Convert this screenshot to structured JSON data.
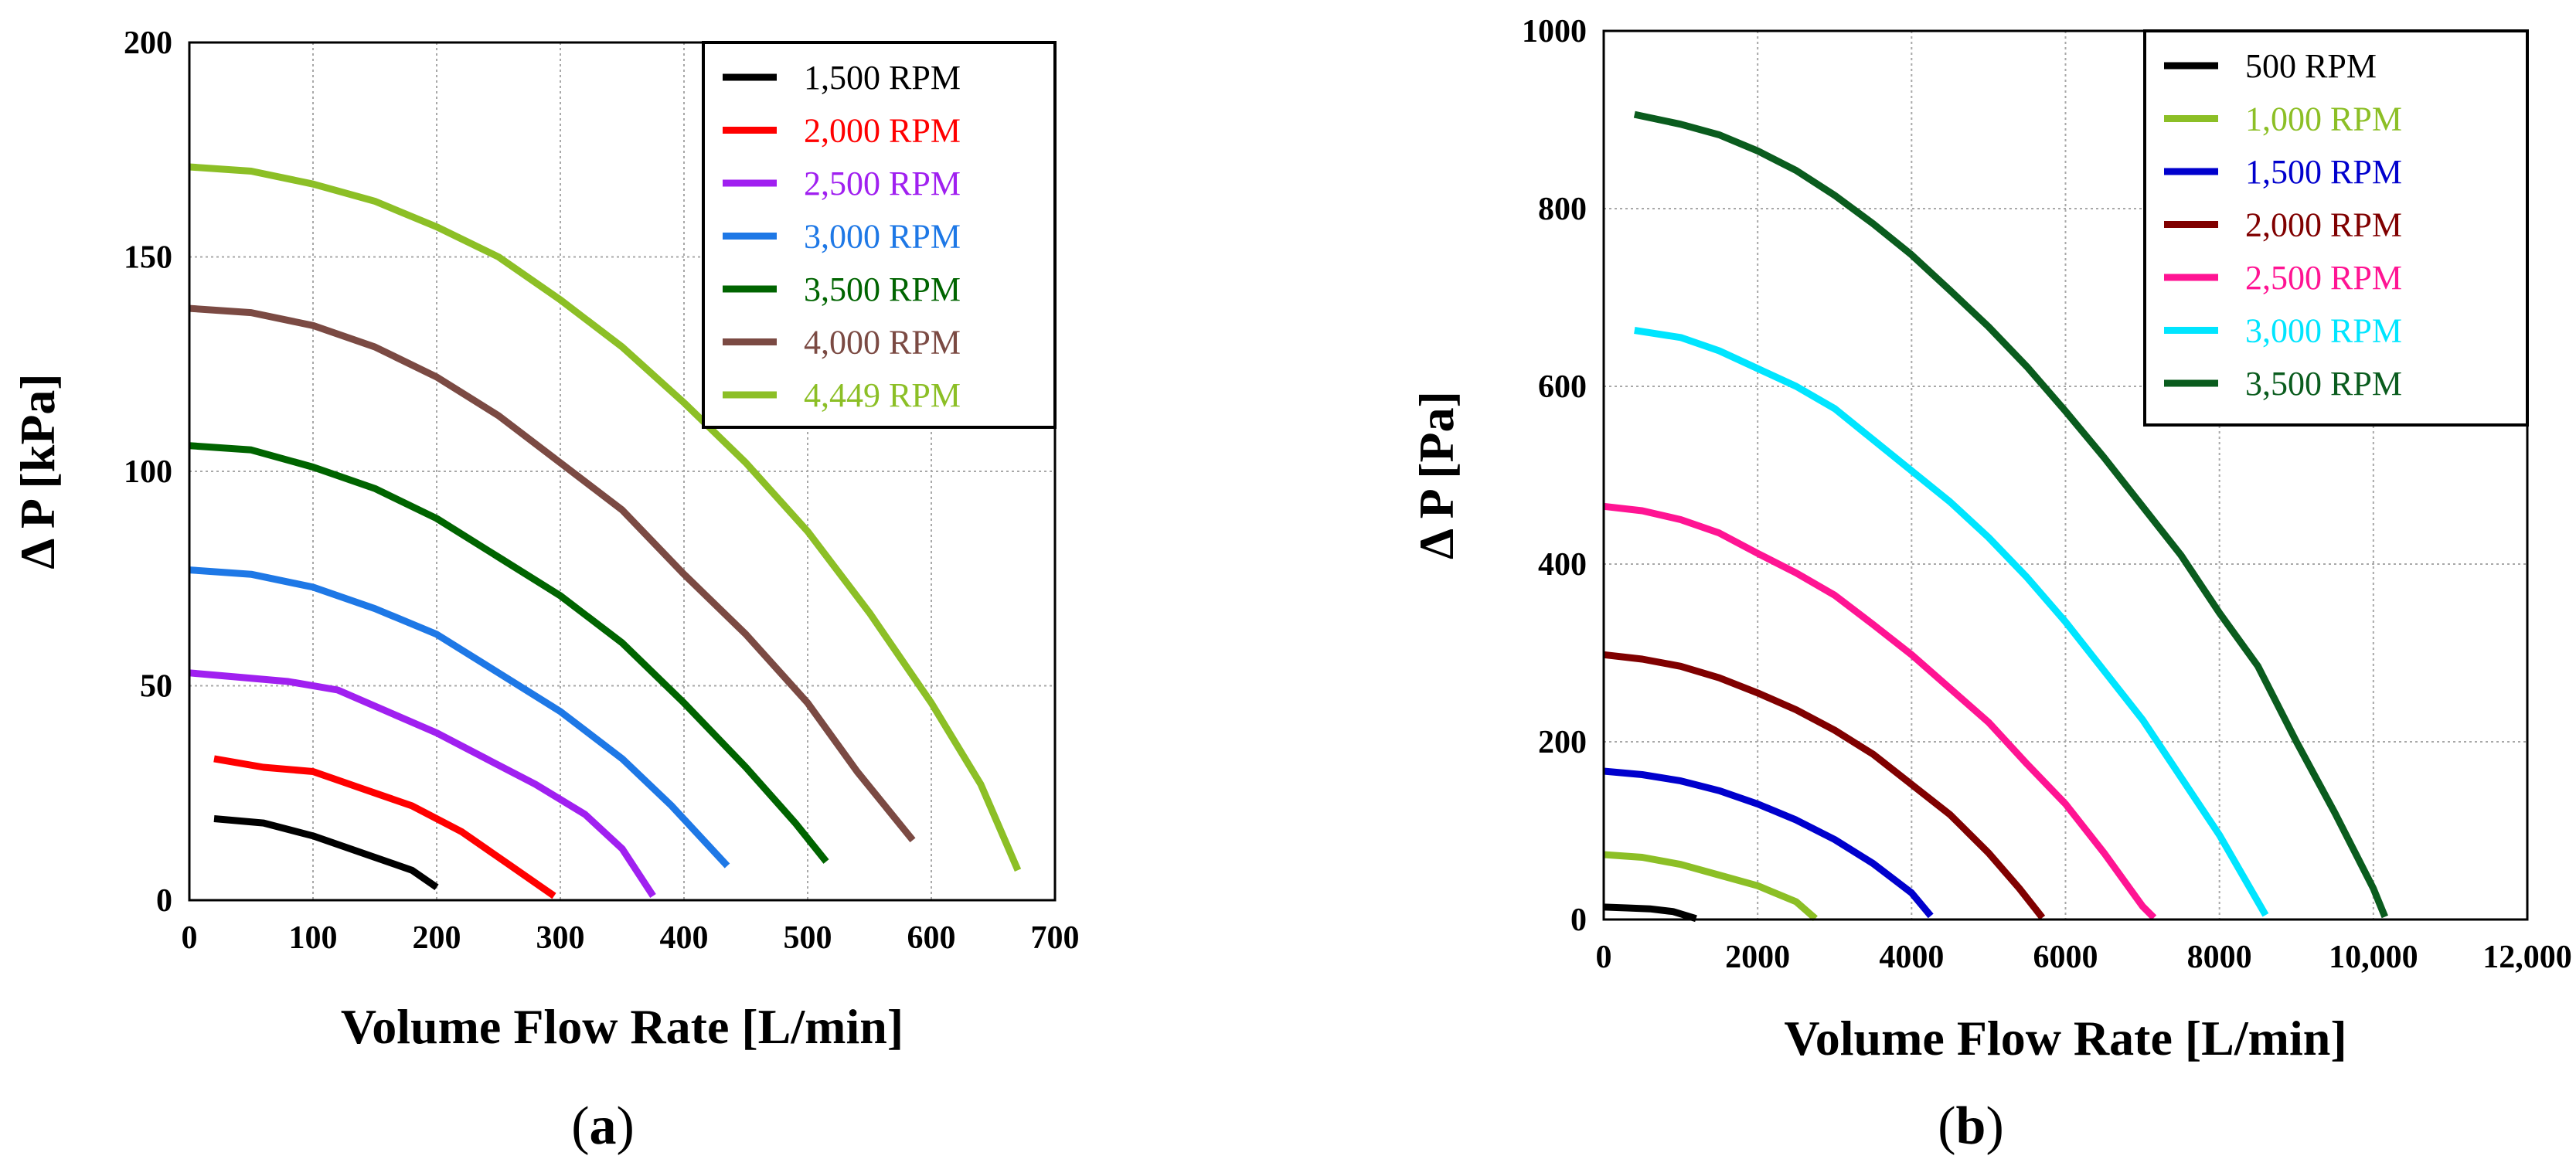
{
  "chart_data": [
    {
      "type": "line",
      "panel_label": "a",
      "xlabel": "Volume Flow Rate [L/min]",
      "ylabel": "Δ P [kPa]",
      "xlim": [
        0,
        700
      ],
      "ylim": [
        0,
        200
      ],
      "xticks": [
        0,
        100,
        200,
        300,
        400,
        500,
        600,
        700
      ],
      "yticks": [
        0,
        50,
        100,
        150,
        200
      ],
      "xtick_labels": [
        "0",
        "100",
        "200",
        "300",
        "400",
        "500",
        "600",
        "700"
      ],
      "ytick_labels": [
        "0",
        "50",
        "100",
        "150",
        "200"
      ],
      "grid": true,
      "legend_position": "top-right",
      "series": [
        {
          "name": "1,500 RPM",
          "color": "#000000",
          "x": [
            20,
            60,
            100,
            140,
            180,
            200
          ],
          "y": [
            19,
            18,
            15,
            11,
            7,
            3
          ]
        },
        {
          "name": "2,000 RPM",
          "color": "#ff0000",
          "x": [
            20,
            60,
            100,
            140,
            180,
            220,
            260,
            295
          ],
          "y": [
            33,
            31,
            30,
            26,
            22,
            16,
            8,
            1
          ]
        },
        {
          "name": "2,500 RPM",
          "color": "#a020f0",
          "x": [
            0,
            40,
            80,
            120,
            160,
            200,
            240,
            280,
            320,
            350,
            375
          ],
          "y": [
            53,
            52,
            51,
            49,
            44,
            39,
            33,
            27,
            20,
            12,
            1
          ]
        },
        {
          "name": "3,000 RPM",
          "color": "#1e78e6",
          "x": [
            0,
            50,
            100,
            150,
            200,
            250,
            300,
            350,
            390,
            435
          ],
          "y": [
            77,
            76,
            73,
            68,
            62,
            53,
            44,
            33,
            22,
            8
          ]
        },
        {
          "name": "3,500 RPM",
          "color": "#006400",
          "x": [
            0,
            50,
            100,
            150,
            200,
            250,
            300,
            350,
            400,
            450,
            490,
            515
          ],
          "y": [
            106,
            105,
            101,
            96,
            89,
            80,
            71,
            60,
            46,
            31,
            18,
            9
          ]
        },
        {
          "name": "4,000 RPM",
          "color": "#7b4a43",
          "x": [
            0,
            50,
            100,
            150,
            200,
            250,
            300,
            350,
            400,
            450,
            500,
            540,
            585
          ],
          "y": [
            138,
            137,
            134,
            129,
            122,
            113,
            102,
            91,
            76,
            62,
            46,
            30,
            14
          ]
        },
        {
          "name": "4,449 RPM",
          "color": "#8cbf26",
          "x": [
            0,
            50,
            100,
            150,
            200,
            250,
            300,
            350,
            400,
            450,
            500,
            550,
            600,
            640,
            670
          ],
          "y": [
            171,
            170,
            167,
            163,
            157,
            150,
            140,
            129,
            116,
            102,
            86,
            67,
            46,
            27,
            7
          ]
        }
      ]
    },
    {
      "type": "line",
      "panel_label": "b",
      "xlabel": "Volume Flow Rate [L/min]",
      "ylabel": "Δ P [Pa]",
      "xlim": [
        0,
        12000
      ],
      "ylim": [
        0,
        1000
      ],
      "xticks": [
        0,
        2000,
        4000,
        6000,
        8000,
        10000,
        12000
      ],
      "yticks": [
        0,
        200,
        400,
        600,
        800,
        1000
      ],
      "xtick_labels": [
        "0",
        "2000",
        "4000",
        "6000",
        "8000",
        "10,000",
        "12,000"
      ],
      "ytick_labels": [
        "0",
        "200",
        "400",
        "600",
        "800",
        "1000"
      ],
      "grid": true,
      "legend_position": "top-right",
      "series": [
        {
          "name": "500 RPM",
          "color": "#000000",
          "x": [
            0,
            300,
            600,
            900,
            1200
          ],
          "y": [
            14,
            13,
            12,
            9,
            1
          ]
        },
        {
          "name": "1,000 RPM",
          "color": "#8cbf26",
          "x": [
            0,
            500,
            1000,
            1500,
            2000,
            2500,
            2750
          ],
          "y": [
            73,
            70,
            62,
            50,
            38,
            20,
            1
          ]
        },
        {
          "name": "1,500 RPM",
          "color": "#0000cd",
          "x": [
            0,
            500,
            1000,
            1500,
            2000,
            2500,
            3000,
            3500,
            4000,
            4250
          ],
          "y": [
            167,
            163,
            156,
            145,
            130,
            112,
            90,
            63,
            30,
            4
          ]
        },
        {
          "name": "2,000 RPM",
          "color": "#800000",
          "x": [
            0,
            500,
            1000,
            1500,
            2000,
            2500,
            3000,
            3500,
            4000,
            4500,
            5000,
            5400,
            5700
          ],
          "y": [
            298,
            293,
            285,
            272,
            255,
            236,
            213,
            186,
            152,
            118,
            75,
            35,
            2
          ]
        },
        {
          "name": "2,500 RPM",
          "color": "#ff1493",
          "x": [
            0,
            500,
            1000,
            1500,
            2000,
            2500,
            3000,
            3500,
            4000,
            4500,
            5000,
            5500,
            6000,
            6500,
            7000,
            7150
          ],
          "y": [
            465,
            460,
            450,
            435,
            412,
            390,
            365,
            332,
            298,
            260,
            222,
            175,
            130,
            75,
            15,
            2
          ]
        },
        {
          "name": "3,000 RPM",
          "color": "#00e5ff",
          "x": [
            400,
            1000,
            1500,
            2000,
            2500,
            3000,
            3500,
            4000,
            4500,
            5000,
            5500,
            6000,
            6500,
            7000,
            7500,
            8000,
            8600
          ],
          "y": [
            663,
            655,
            640,
            620,
            600,
            575,
            540,
            505,
            470,
            430,
            385,
            335,
            280,
            225,
            160,
            95,
            5
          ]
        },
        {
          "name": "3,500 RPM",
          "color": "#0a5c1e",
          "x": [
            400,
            1000,
            1500,
            2000,
            2500,
            3000,
            3500,
            4000,
            4500,
            5000,
            5500,
            6000,
            6500,
            7000,
            7500,
            8000,
            8500,
            9000,
            9500,
            10000,
            10150
          ],
          "y": [
            906,
            895,
            883,
            865,
            843,
            815,
            783,
            748,
            708,
            667,
            622,
            572,
            520,
            465,
            410,
            345,
            285,
            200,
            120,
            35,
            3
          ]
        }
      ]
    }
  ]
}
